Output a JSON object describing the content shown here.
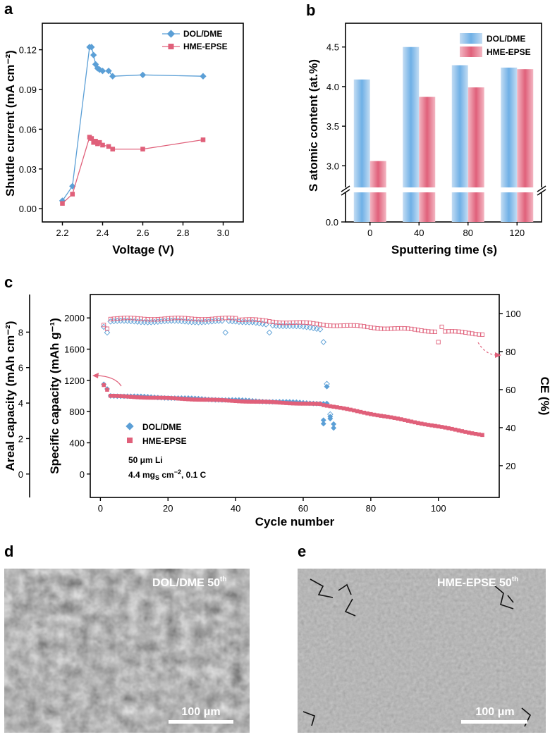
{
  "colors": {
    "dol": "#5b9fd6",
    "hme": "#e0607a",
    "dol_bar": "#9cc6ec",
    "hme_bar": "#ec8a9d"
  },
  "panels": {
    "a": "a",
    "b": "b",
    "c": "c",
    "d": "d",
    "e": "e"
  },
  "chart_data": [
    {
      "id": "a",
      "type": "line",
      "xlabel": "Voltage (V)",
      "ylabel": "Shuttle current (mA cm⁻²)",
      "xlim": [
        2.1,
        3.1
      ],
      "ylim": [
        -0.01,
        0.14
      ],
      "xticks": [
        2.2,
        2.4,
        2.6,
        2.8,
        3.0
      ],
      "xtick_labels": [
        "2.2",
        "2.4",
        "2.6",
        "2.8",
        "3.0"
      ],
      "yticks": [
        0.0,
        0.03,
        0.06,
        0.09,
        0.12
      ],
      "ytick_labels": [
        "0.00",
        "0.03",
        "0.06",
        "0.09",
        "0.12"
      ],
      "legend_position": "top-right",
      "series": [
        {
          "name": "DOL/DME",
          "marker": "diamond",
          "x": [
            2.2,
            2.25,
            2.335,
            2.345,
            2.355,
            2.365,
            2.375,
            2.385,
            2.4,
            2.43,
            2.45,
            2.6,
            2.9
          ],
          "y": [
            0.006,
            0.017,
            0.122,
            0.122,
            0.116,
            0.109,
            0.106,
            0.105,
            0.104,
            0.104,
            0.1,
            0.101,
            0.1
          ]
        },
        {
          "name": "HME-EPSE",
          "marker": "square",
          "x": [
            2.2,
            2.25,
            2.335,
            2.345,
            2.355,
            2.365,
            2.375,
            2.385,
            2.4,
            2.43,
            2.45,
            2.6,
            2.9
          ],
          "y": [
            0.004,
            0.011,
            0.054,
            0.053,
            0.05,
            0.051,
            0.049,
            0.05,
            0.048,
            0.047,
            0.045,
            0.045,
            0.052
          ]
        }
      ]
    },
    {
      "id": "b",
      "type": "bar",
      "xlabel": "Sputtering time (s)",
      "ylabel": "S atomic content (at.%)",
      "categories": [
        "0",
        "40",
        "80",
        "120"
      ],
      "ylim": [
        2.7,
        4.8
      ],
      "y_broken_axis": true,
      "y_zero_label": "0.0",
      "yticks": [
        3.0,
        3.5,
        4.0,
        4.5
      ],
      "ytick_labels": [
        "3.0",
        "3.5",
        "4.0",
        "4.5"
      ],
      "legend_position": "top-right",
      "series": [
        {
          "name": "DOL/DME",
          "values": [
            4.09,
            4.5,
            4.27,
            4.24
          ]
        },
        {
          "name": "HME-EPSE",
          "values": [
            3.06,
            3.87,
            3.99,
            4.22
          ]
        }
      ]
    },
    {
      "id": "c",
      "type": "scatter",
      "xlabel": "Cycle number",
      "ylabel_left_outer": "Areal capacity (mAh cm⁻²)",
      "ylabel_left_inner": "Specific capacity (mAh g⁻¹)",
      "ylabel_right": "CE (%)",
      "xlim": [
        -3,
        118
      ],
      "ylim": [
        -300,
        2300
      ],
      "xticks": [
        0,
        20,
        40,
        60,
        80,
        100
      ],
      "xtick_labels": [
        "0",
        "20",
        "40",
        "60",
        "80",
        "100"
      ],
      "yticks": [
        0,
        400,
        800,
        1200,
        1600,
        2000
      ],
      "ytick_labels": [
        "0",
        "400",
        "800",
        "1200",
        "1600",
        "2000"
      ],
      "areal_ticks": [
        0,
        2,
        4,
        6,
        8
      ],
      "areal_tick_labels": [
        "0",
        "2",
        "4",
        "6",
        "8"
      ],
      "ce_ylim": [
        3.3,
        110
      ],
      "ce_ticks": [
        20,
        40,
        60,
        80,
        100
      ],
      "ce_tick_labels": [
        "20",
        "40",
        "60",
        "80",
        "100"
      ],
      "legend": [
        "DOL/DME",
        "HME-EPSE"
      ],
      "annotation_line1": "50 μm Li",
      "annotation_line2_prefix": "4.4 mg",
      "annotation_line2_sub": "S",
      "annotation_line2_unit": " cm",
      "annotation_line2_sup": "−2",
      "annotation_line2_suffix": ", 0.1 C",
      "series": [
        {
          "name": "DOL/DME",
          "kind": "capacity",
          "marker": "diamond",
          "description": "1150 at cycle 1, ~1000 at cycle 3 decaying to ~900 at cycle 66, scattered 600-1120 at cycles 66-69"
        },
        {
          "name": "HME-EPSE",
          "kind": "capacity",
          "marker": "square",
          "description": "1140 at cycle 1, ~1000 at cycle 3 decaying linearly to ~505 at cycle 113"
        },
        {
          "name": "DOL/DME CE",
          "kind": "CE",
          "marker": "open-diamond",
          "description": "~95-96% for cycles 3-50, drifting to ~92% near cycle 65, dips ~90% at cycle 37 and ~85% at cycle 66"
        },
        {
          "name": "HME-EPSE CE",
          "kind": "CE",
          "marker": "open-square",
          "description": "~97-98% early, declining gradually to ~89% at cycle 113, outliers ~85% near cycle 100"
        }
      ]
    }
  ],
  "sem": {
    "d": {
      "label": "DOL/DME 50",
      "sup": "th",
      "scale": "100 μm"
    },
    "e": {
      "label": "HME-EPSE 50",
      "sup": "th",
      "scale": "100 μm"
    }
  }
}
